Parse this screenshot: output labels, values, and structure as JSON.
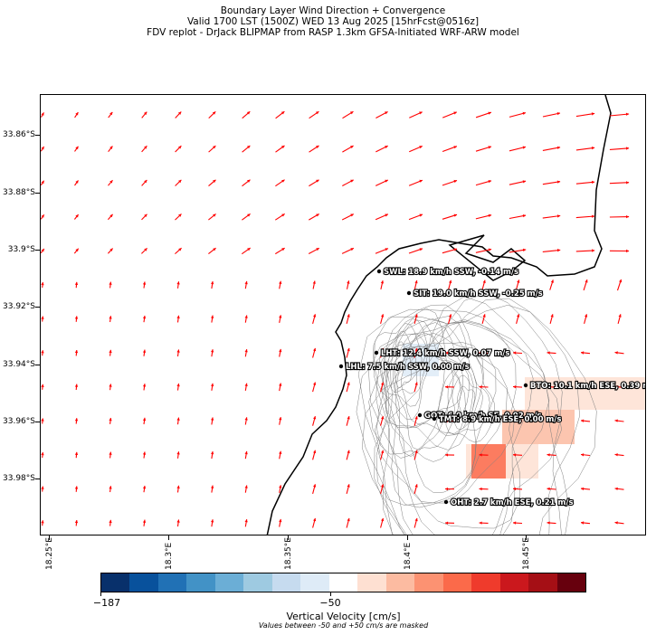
{
  "title": {
    "line1": "Boundary Layer Wind Direction + Convergence",
    "line2": "Valid 1700 LST (1500Z) WED 13 Aug 2025 [15hrFcst@0516z]",
    "line3": "FDV replot - DrJack BLIPMAP from RASP 1.3km GFSA-Initiated WRF-ARW model"
  },
  "axes": {
    "lat_labels": [
      "33.86°S",
      "33.88°S",
      "33.9°S",
      "33.92°S",
      "33.94°S",
      "33.96°S",
      "33.98°S"
    ],
    "lon_labels": [
      "18.25°E",
      "18.3°E",
      "18.35°E",
      "18.4°E",
      "18.45°E"
    ]
  },
  "sites": [
    {
      "code": "SWL",
      "text": "SWL: 18.9 km/h SSW, -0.14 m/s"
    },
    {
      "code": "SIT",
      "text": "SIT: 19.0 km/h SSW, -0.25 m/s"
    },
    {
      "code": "LHT",
      "text": "LHT: 12.4 km/h SSW, 0.07 m/s"
    },
    {
      "code": "LHL",
      "text": "LHL: 7.5 km/h SSW, 0.00 m/s"
    },
    {
      "code": "BTO",
      "text": "BTO: 10.1 km/h ESE, 0.39 m/s"
    },
    {
      "code": "GOT",
      "text": "GOT: 6.0 km/h SE, 0.02 m/s"
    },
    {
      "code": "TMT",
      "text": "TMT: 8.9 km/h ESE, 0.00 m/s"
    },
    {
      "code": "OHT",
      "text": "OHT: 2.7 km/h ESE, 0.21 m/s"
    }
  ],
  "colorbar": {
    "colors": [
      "#08306b",
      "#08519c",
      "#2171b5",
      "#4292c6",
      "#6baed6",
      "#9ecae1",
      "#c6dbef",
      "#deebf7",
      "#ffffff",
      "#fee0d2",
      "#fcbba1",
      "#fc9272",
      "#fb6a4a",
      "#ef3b2c",
      "#cb181d",
      "#a50f15",
      "#67000d"
    ],
    "tick_labels": [
      "−187",
      "−50"
    ],
    "label": "Vertical Velocity [cm/s]",
    "note": "Values between -50 and +50 cm/s are masked"
  },
  "colors": {
    "wind_arrow": "#ff0000",
    "coastline": "#000000",
    "contour": "#808080",
    "updraft_light": "#fee0d2",
    "updraft_mid": "#fcbba1",
    "updraft_strong": "#fb6a4a",
    "downdraft_light": "#deebf7"
  }
}
